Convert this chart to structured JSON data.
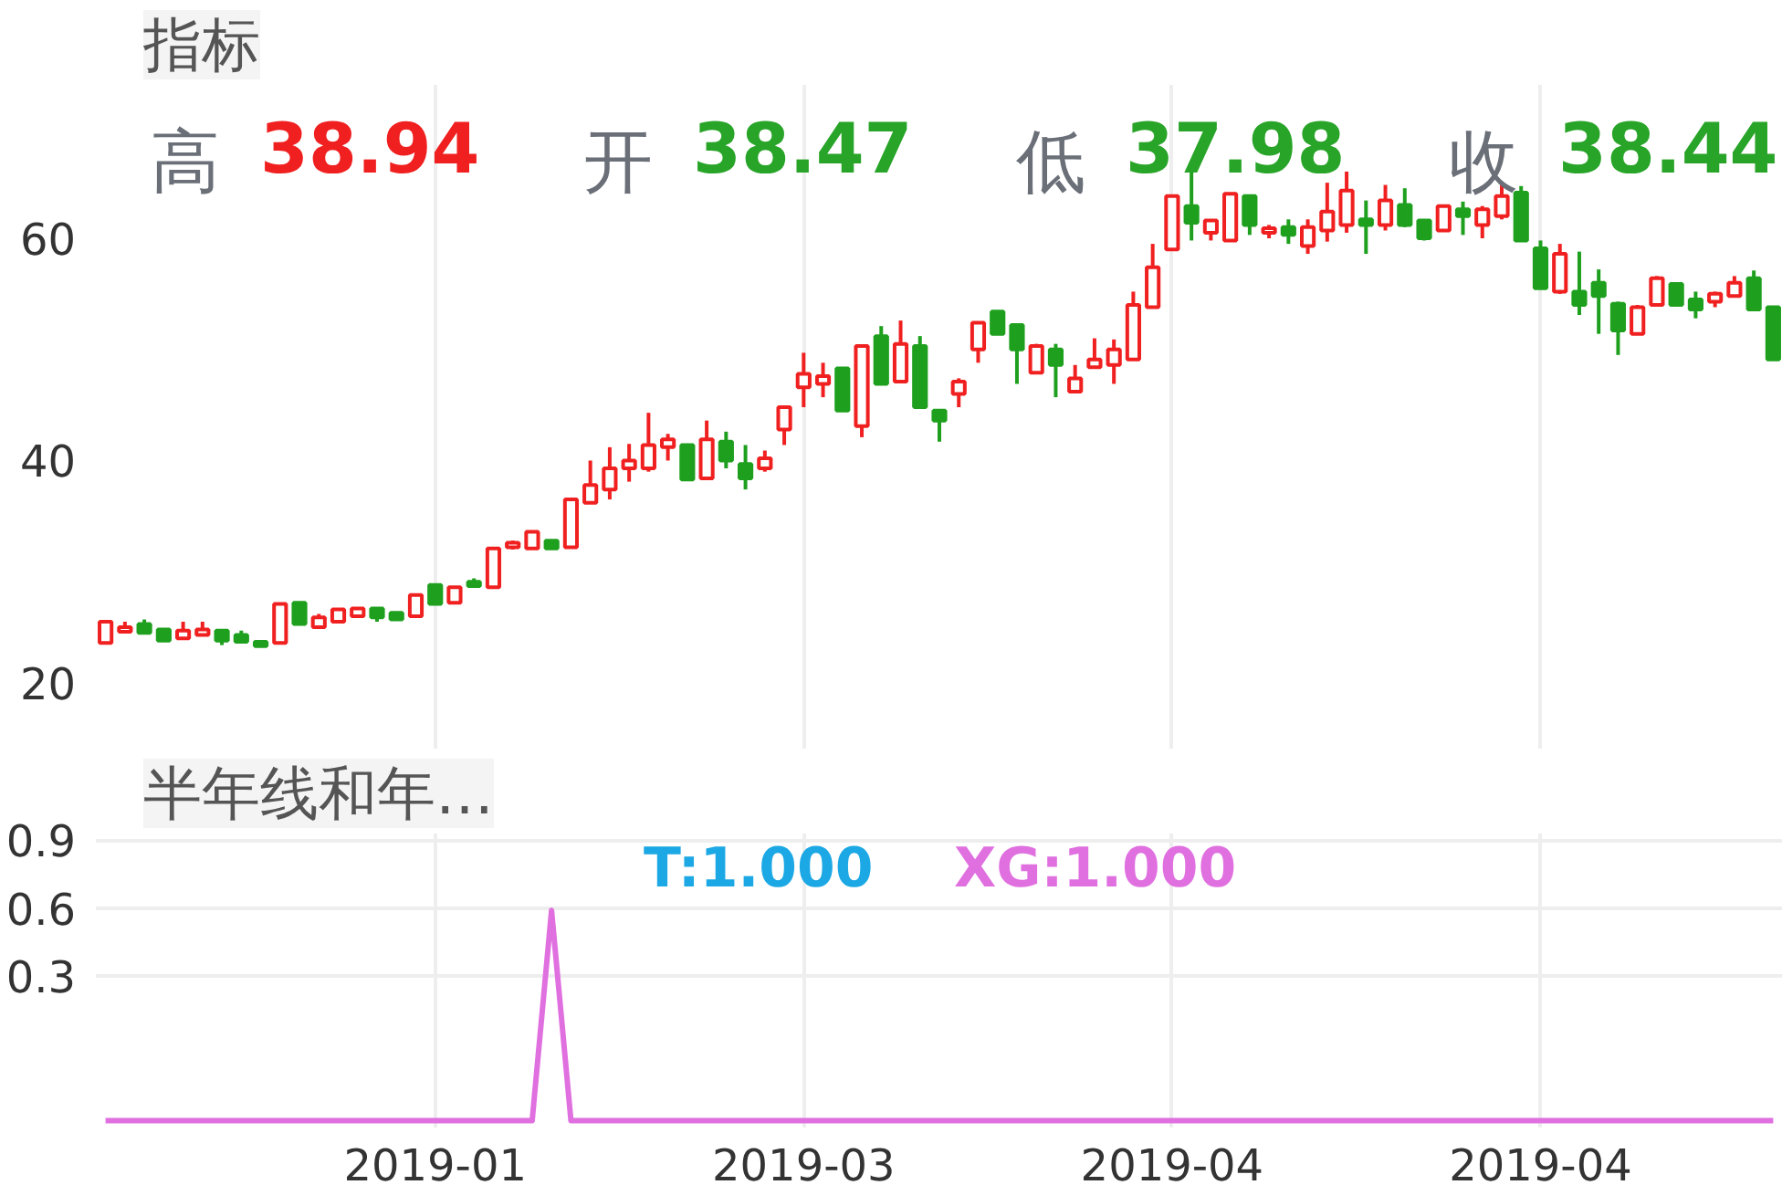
{
  "chart_data": [
    {
      "type": "candlestick",
      "title": "指标",
      "annotations": [
        "高 38.94",
        "开 38.47",
        "低 37.98",
        "收 38.44"
      ],
      "categories": [
        null,
        null,
        null,
        null,
        null,
        null,
        null,
        null,
        null,
        null,
        null,
        null,
        null,
        null,
        null,
        null,
        null,
        "2019-01",
        null,
        null,
        null,
        null,
        null,
        null,
        null,
        null,
        null,
        null,
        null,
        null,
        null,
        null,
        null,
        null,
        null,
        null,
        "2019-03",
        null,
        null,
        null,
        null,
        null,
        null,
        null,
        null,
        null,
        null,
        null,
        null,
        null,
        null,
        null,
        null,
        null,
        null,
        "2019-04",
        null,
        null,
        null,
        null,
        null,
        null,
        null,
        null,
        null,
        null,
        null,
        null,
        null,
        null,
        null,
        null,
        null,
        null,
        "2019-04",
        null,
        null,
        null,
        null,
        null,
        null,
        null,
        null,
        null,
        null,
        null,
        null
      ],
      "ohlc": [
        [
          23.6,
          25.5,
          23.6,
          25.5
        ],
        [
          24.6,
          25.5,
          24.5,
          25.0
        ],
        [
          25.3,
          25.7,
          24.5,
          24.5
        ],
        [
          24.8,
          24.9,
          23.8,
          23.8
        ],
        [
          24.0,
          25.5,
          24.0,
          24.7
        ],
        [
          24.3,
          25.5,
          24.3,
          24.8
        ],
        [
          24.7,
          24.7,
          23.4,
          23.8
        ],
        [
          24.3,
          24.7,
          23.7,
          23.7
        ],
        [
          23.7,
          23.7,
          23.3,
          23.3
        ],
        [
          23.6,
          27.1,
          23.6,
          27.1
        ],
        [
          27.2,
          27.2,
          25.3,
          25.3
        ],
        [
          25.0,
          26.2,
          25.0,
          25.9
        ],
        [
          25.5,
          26.6,
          25.5,
          26.6
        ],
        [
          26.0,
          26.7,
          26.0,
          26.7
        ],
        [
          26.7,
          26.7,
          25.5,
          25.9
        ],
        [
          26.3,
          26.3,
          25.6,
          25.7
        ],
        [
          26.0,
          27.9,
          26.0,
          27.9
        ],
        [
          28.8,
          28.9,
          27.1,
          27.1
        ],
        [
          27.2,
          28.6,
          27.2,
          28.6
        ],
        [
          29.1,
          29.4,
          28.7,
          28.7
        ],
        [
          28.6,
          32.1,
          28.6,
          32.1
        ],
        [
          32.2,
          32.8,
          32.0,
          32.6
        ],
        [
          32.1,
          33.6,
          32.0,
          33.6
        ],
        [
          32.8,
          32.8,
          32.0,
          32.1
        ],
        [
          32.2,
          36.5,
          32.2,
          36.5
        ],
        [
          36.2,
          40.0,
          36.2,
          37.8
        ],
        [
          37.4,
          41.2,
          36.5,
          39.3
        ],
        [
          39.3,
          41.5,
          38.1,
          40.0
        ],
        [
          39.3,
          44.3,
          39.0,
          41.4
        ],
        [
          41.2,
          42.4,
          40.0,
          41.9
        ],
        [
          41.4,
          41.4,
          38.3,
          38.3
        ],
        [
          38.4,
          43.6,
          38.4,
          41.9
        ],
        [
          41.7,
          42.6,
          39.3,
          40.0
        ],
        [
          39.7,
          41.4,
          37.4,
          38.4
        ],
        [
          39.3,
          40.9,
          39.0,
          40.2
        ],
        [
          42.8,
          44.8,
          41.4,
          44.8
        ],
        [
          46.6,
          49.7,
          44.8,
          47.8
        ],
        [
          46.9,
          48.8,
          45.7,
          47.6
        ],
        [
          48.3,
          48.3,
          44.5,
          44.5
        ],
        [
          43.1,
          50.3,
          42.1,
          50.3
        ],
        [
          51.2,
          52.1,
          46.9,
          46.9
        ],
        [
          47.1,
          52.6,
          47.1,
          50.5
        ],
        [
          50.3,
          51.2,
          44.8,
          44.8
        ],
        [
          44.5,
          44.5,
          41.7,
          43.6
        ],
        [
          46.0,
          47.4,
          44.8,
          47.1
        ],
        [
          50.0,
          52.4,
          48.8,
          52.4
        ],
        [
          53.4,
          53.4,
          51.4,
          51.4
        ],
        [
          52.2,
          52.2,
          46.9,
          50.0
        ],
        [
          47.9,
          50.5,
          47.9,
          50.3
        ],
        [
          50.0,
          50.5,
          45.7,
          48.6
        ],
        [
          46.2,
          48.6,
          46.2,
          47.4
        ],
        [
          48.4,
          51.0,
          48.4,
          49.1
        ],
        [
          48.6,
          50.9,
          46.9,
          50.0
        ],
        [
          49.1,
          55.2,
          49.1,
          54.0
        ],
        [
          53.8,
          59.5,
          53.8,
          57.4
        ],
        [
          59.0,
          63.8,
          59.0,
          63.8
        ],
        [
          62.9,
          66.0,
          59.8,
          61.4
        ],
        [
          60.5,
          61.7,
          59.8,
          61.6
        ],
        [
          59.8,
          64.0,
          59.8,
          64.0
        ],
        [
          63.8,
          63.8,
          60.3,
          61.2
        ],
        [
          60.5,
          61.2,
          60.0,
          60.9
        ],
        [
          61.0,
          61.7,
          59.5,
          60.3
        ],
        [
          59.3,
          61.7,
          58.6,
          61.0
        ],
        [
          60.7,
          65.0,
          59.7,
          62.4
        ],
        [
          61.2,
          66.0,
          60.5,
          64.3
        ],
        [
          61.7,
          63.4,
          58.6,
          61.2
        ],
        [
          61.2,
          64.8,
          60.7,
          63.4
        ],
        [
          63.0,
          64.5,
          61.0,
          61.2
        ],
        [
          61.6,
          61.6,
          59.8,
          60.0
        ],
        [
          60.7,
          62.9,
          60.7,
          62.9
        ],
        [
          62.6,
          63.3,
          60.3,
          62.0
        ],
        [
          61.2,
          62.9,
          60.0,
          62.6
        ],
        [
          62.0,
          65.0,
          61.7,
          63.8
        ],
        [
          64.1,
          64.7,
          59.8,
          59.8
        ],
        [
          59.1,
          59.8,
          55.5,
          55.5
        ],
        [
          55.2,
          59.5,
          55.0,
          58.6
        ],
        [
          55.2,
          58.8,
          53.1,
          54.0
        ],
        [
          56.0,
          57.2,
          51.4,
          54.8
        ],
        [
          54.1,
          54.3,
          49.5,
          51.7
        ],
        [
          51.4,
          54.0,
          51.4,
          53.8
        ],
        [
          54.0,
          56.6,
          54.0,
          56.4
        ],
        [
          55.9,
          55.9,
          54.0,
          54.0
        ],
        [
          54.5,
          55.2,
          52.8,
          53.6
        ],
        [
          54.3,
          55.2,
          53.8,
          55.0
        ],
        [
          54.8,
          56.6,
          54.8,
          56.0
        ],
        [
          56.4,
          57.1,
          53.6,
          53.6
        ],
        [
          53.8,
          53.8,
          49.1,
          49.1
        ]
      ],
      "colors": [
        "#f02020",
        "#f02020",
        "#1ea01e",
        "#1ea01e",
        "#f02020",
        "#f02020",
        "#1ea01e",
        "#1ea01e",
        "#1ea01e",
        "#f02020",
        "#1ea01e",
        "#f02020",
        "#f02020",
        "#f02020",
        "#1ea01e",
        "#1ea01e",
        "#f02020",
        "#1ea01e",
        "#f02020",
        "#1ea01e",
        "#f02020",
        "#f02020",
        "#f02020",
        "#1ea01e",
        "#f02020",
        "#f02020",
        "#f02020",
        "#f02020",
        "#f02020",
        "#f02020",
        "#1ea01e",
        "#f02020",
        "#1ea01e",
        "#1ea01e",
        "#f02020",
        "#f02020",
        "#f02020",
        "#f02020",
        "#1ea01e",
        "#f02020",
        "#1ea01e",
        "#f02020",
        "#1ea01e",
        "#1ea01e",
        "#f02020",
        "#f02020",
        "#1ea01e",
        "#1ea01e",
        "#f02020",
        "#1ea01e",
        "#f02020",
        "#f02020",
        "#f02020",
        "#f02020",
        "#f02020",
        "#f02020",
        "#1ea01e",
        "#f02020",
        "#f02020",
        "#1ea01e",
        "#f02020",
        "#1ea01e",
        "#f02020",
        "#f02020",
        "#f02020",
        "#1ea01e",
        "#f02020",
        "#1ea01e",
        "#1ea01e",
        "#f02020",
        "#1ea01e",
        "#f02020",
        "#f02020",
        "#1ea01e",
        "#1ea01e",
        "#f02020",
        "#1ea01e",
        "#1ea01e",
        "#1ea01e",
        "#f02020",
        "#f02020",
        "#1ea01e",
        "#1ea01e",
        "#f02020",
        "#f02020",
        "#1ea01e",
        "#1ea01e"
      ],
      "ylim": [
        14,
        73.8
      ],
      "yticks": [
        20,
        40,
        60
      ],
      "grid": "x",
      "tick_labels": "y"
    },
    {
      "type": "line",
      "title": "半年线和年…",
      "categories": [
        null,
        null,
        null,
        null,
        null,
        null,
        null,
        null,
        null,
        null,
        null,
        null,
        null,
        null,
        null,
        null,
        null,
        "2019-01",
        null,
        null,
        null,
        null,
        null,
        null,
        null,
        null,
        null,
        null,
        null,
        null,
        null,
        null,
        null,
        null,
        null,
        null,
        "2019-03",
        null,
        null,
        null,
        null,
        null,
        null,
        null,
        null,
        null,
        null,
        null,
        null,
        null,
        null,
        null,
        null,
        null,
        null,
        "2019-04",
        null,
        null,
        null,
        null,
        null,
        null,
        null,
        null,
        null,
        null,
        null,
        null,
        null,
        null,
        null,
        null,
        null,
        null,
        "2019-04",
        null,
        null,
        null,
        null,
        null,
        null,
        null,
        null,
        null,
        null,
        null,
        null
      ],
      "series": [
        {
          "name": "T:1.000",
          "color": "#1ca8e4",
          "values": [
            null,
            null,
            null,
            null,
            null,
            null,
            null,
            null,
            null,
            null,
            null,
            null,
            null,
            null,
            null,
            null,
            null,
            null,
            null,
            null,
            null,
            null,
            null,
            null,
            null,
            null,
            null,
            null,
            null,
            null,
            null,
            null,
            null,
            null,
            null,
            null,
            null,
            null,
            null,
            null,
            null,
            null,
            null,
            null,
            null,
            null,
            null,
            null,
            null,
            null,
            null,
            null,
            null,
            null,
            null,
            null,
            null,
            null,
            null,
            null,
            null,
            null,
            null,
            null,
            null,
            null,
            null,
            null,
            null,
            null,
            null,
            null,
            null,
            null,
            null,
            null,
            null,
            null,
            null,
            null,
            null,
            null,
            null,
            null,
            null,
            null,
            null
          ]
        },
        {
          "name": "XG:1.000",
          "color": "#e070e0",
          "values": [
            -0.34,
            -0.34,
            -0.34,
            -0.34,
            -0.34,
            -0.34,
            -0.34,
            -0.34,
            -0.34,
            -0.34,
            -0.34,
            -0.34,
            -0.34,
            -0.34,
            -0.34,
            -0.34,
            -0.34,
            -0.34,
            -0.34,
            -0.34,
            -0.34,
            -0.34,
            -0.34,
            0.59,
            -0.34,
            -0.34,
            -0.34,
            -0.34,
            -0.34,
            -0.34,
            -0.34,
            -0.34,
            -0.34,
            -0.34,
            -0.34,
            -0.34,
            -0.34,
            -0.34,
            -0.34,
            -0.34,
            -0.34,
            -0.34,
            -0.34,
            -0.34,
            -0.34,
            -0.34,
            -0.34,
            -0.34,
            -0.34,
            -0.34,
            -0.34,
            -0.34,
            -0.34,
            -0.34,
            -0.34,
            -0.34,
            -0.34,
            -0.34,
            -0.34,
            -0.34,
            -0.34,
            -0.34,
            -0.34,
            -0.34,
            -0.34,
            -0.34,
            -0.34,
            -0.34,
            -0.34,
            -0.34,
            -0.34,
            -0.34,
            -0.34,
            -0.34,
            -0.34,
            -0.34,
            -0.34,
            -0.34,
            -0.34,
            -0.34,
            -0.34,
            -0.34,
            -0.34,
            -0.34,
            -0.34,
            -0.34,
            -0.34
          ]
        }
      ],
      "ylim": [
        -0.37,
        0.93
      ],
      "yticks": [
        0.3,
        0.6,
        0.9
      ],
      "grid": true
    }
  ]
}
